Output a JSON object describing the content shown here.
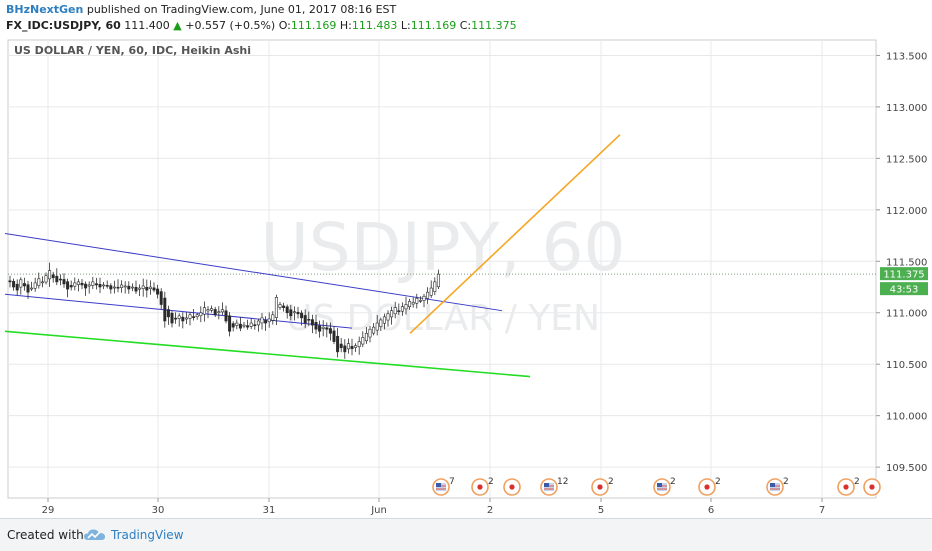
{
  "header": {
    "author": "BHzNextGen",
    "published_text": "published on TradingView.com, June 01, 2017 08:16 EST",
    "symbol_text": "FX_IDC:USDJPY, 60",
    "last_price": "111.400",
    "change": "+0.557 (+0.5%)",
    "open_label": "O:",
    "open": "111.169",
    "high_label": "H:",
    "high": "111.483",
    "low_label": "L:",
    "low": "111.169",
    "close_label": "C:",
    "close": "111.375"
  },
  "chart_data": {
    "type": "candlestick",
    "title": "US DOLLAR / YEN, 60, IDC, Heikin Ashi",
    "watermark_symbol": "USDJPY, 60",
    "watermark_name": "US DOLLAR / YEN",
    "x_tick_labels": [
      "29",
      "30",
      "31",
      "Jun",
      "2",
      "5",
      "6",
      "7"
    ],
    "y_ticks": [
      109.5,
      110.0,
      110.5,
      111.0,
      111.5,
      112.0,
      112.5,
      113.0,
      113.5
    ],
    "y_tick_labels": [
      "109.500",
      "110.000",
      "110.500",
      "111.000",
      "111.500",
      "112.000",
      "112.500",
      "113.000",
      "113.500"
    ],
    "ylim": [
      109.2,
      113.65
    ],
    "current_price_label": "111.375",
    "current_price": 111.375,
    "countdown_label": "43:53",
    "grid": true,
    "candle_closes": [
      111.3,
      111.25,
      111.22,
      111.32,
      111.26,
      111.2,
      111.24,
      111.29,
      111.33,
      111.3,
      111.36,
      111.41,
      111.34,
      111.3,
      111.32,
      111.28,
      111.23,
      111.25,
      111.29,
      111.3,
      111.27,
      111.24,
      111.27,
      111.3,
      111.27,
      111.25,
      111.27,
      111.26,
      111.23,
      111.25,
      111.24,
      111.27,
      111.26,
      111.23,
      111.25,
      111.21,
      111.24,
      111.26,
      111.22,
      111.25,
      111.22,
      111.18,
      111.08,
      110.92,
      110.96,
      110.9,
      110.94,
      110.97,
      110.92,
      110.95,
      110.98,
      110.96,
      110.98,
      111.0,
      111.05,
      111.03,
      111.04,
      110.98,
      111.01,
      111.03,
      110.92,
      110.82,
      110.86,
      110.9,
      110.85,
      110.88,
      110.86,
      110.9,
      110.88,
      110.92,
      110.95,
      110.9,
      110.94,
      110.98,
      111.15,
      111.08,
      111.05,
      111.0,
      110.97,
      111.01,
      110.99,
      110.95,
      110.9,
      110.93,
      110.88,
      110.84,
      110.82,
      110.86,
      110.84,
      110.8,
      110.72,
      110.62,
      110.66,
      110.62,
      110.7,
      110.65,
      110.68,
      110.72,
      110.76,
      110.8,
      110.84,
      110.86,
      110.9,
      110.93,
      110.96,
      110.99,
      111.02,
      111.05,
      111.01,
      111.06,
      111.08,
      111.11,
      111.1,
      111.14,
      111.12,
      111.16,
      111.2,
      111.24,
      111.3,
      111.375
    ],
    "trend_lines": [
      {
        "name": "upper channel",
        "color": "#3c3cc8",
        "from": [
          "28 May",
          111.77
        ],
        "to": [
          "1 Jun 20:00",
          111.02
        ]
      },
      {
        "name": "lower channel",
        "color": "#3c3cc8",
        "from": [
          "28 May",
          111.18
        ],
        "to": [
          "31 May 18:00",
          110.85
        ]
      },
      {
        "name": "support",
        "color": "#22dd22",
        "from": [
          "28 May",
          110.82
        ],
        "to": [
          "2 Jun 06:00",
          110.38
        ]
      },
      {
        "name": "projection",
        "color": "#f5a623",
        "from": [
          "1 Jun 06:00",
          110.8
        ],
        "to": [
          "5 Jun 03:00",
          112.73
        ]
      }
    ],
    "event_markers": [
      {
        "type": "us-flag",
        "count": "7"
      },
      {
        "type": "jp-flag",
        "count": "2"
      },
      {
        "type": "jp-flag",
        "count": ""
      },
      {
        "type": "us-flag",
        "count": "12"
      },
      {
        "type": "jp-flag",
        "count": "2"
      },
      {
        "type": "us-flag",
        "count": "2"
      },
      {
        "type": "jp-flag",
        "count": "2"
      },
      {
        "type": "us-flag",
        "count": "2"
      },
      {
        "type": "jp-flag",
        "count": "2"
      },
      {
        "type": "jp-flag",
        "count": ""
      }
    ]
  },
  "footer": {
    "created_with": "Created with",
    "brand": "TradingView"
  },
  "colors": {
    "up": "#26a69a",
    "down": "#ef5350",
    "candle_body": "#2b2b2b",
    "grid": "#e6e9ec",
    "price_badge": "#4caf50"
  }
}
